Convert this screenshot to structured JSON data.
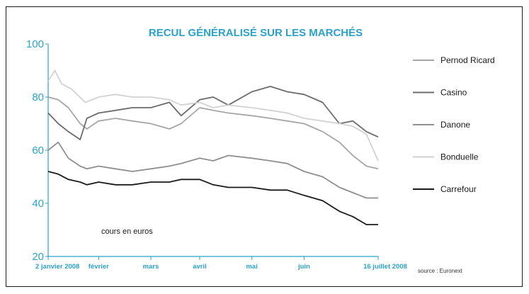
{
  "chart_data": {
    "type": "line",
    "title": "RECUL GÉNÉRALISÉ SUR LES MARCHÉS",
    "unit_note": "cours en euros",
    "source": "source : Euronext",
    "ylim": [
      20,
      100
    ],
    "y_ticks": [
      20,
      40,
      60,
      80,
      100
    ],
    "x_range": [
      "2008-01-02",
      "2008-07-16"
    ],
    "x_ticks": [
      {
        "date": "2008-01-02",
        "label": "2 janvier 2008"
      },
      {
        "date": "2008-02-01",
        "label": "février"
      },
      {
        "date": "2008-03-03",
        "label": "mars"
      },
      {
        "date": "2008-04-01",
        "label": "avril"
      },
      {
        "date": "2008-05-02",
        "label": "mai"
      },
      {
        "date": "2008-06-02",
        "label": "juin"
      },
      {
        "date": "2008-07-16",
        "label": "16 juillet 2008"
      }
    ],
    "grid": false,
    "legend_position": "right",
    "series": [
      {
        "name": "Pernod Ricard",
        "color": "#a6a6a6",
        "points": [
          [
            "2008-01-02",
            80
          ],
          [
            "2008-01-08",
            79
          ],
          [
            "2008-01-14",
            76
          ],
          [
            "2008-01-21",
            70
          ],
          [
            "2008-01-25",
            68
          ],
          [
            "2008-02-01",
            71
          ],
          [
            "2008-02-11",
            72
          ],
          [
            "2008-02-21",
            71
          ],
          [
            "2008-03-03",
            70
          ],
          [
            "2008-03-14",
            68
          ],
          [
            "2008-03-21",
            70
          ],
          [
            "2008-04-01",
            76
          ],
          [
            "2008-04-09",
            75
          ],
          [
            "2008-04-18",
            74
          ],
          [
            "2008-05-02",
            73
          ],
          [
            "2008-05-13",
            72
          ],
          [
            "2008-05-23",
            71
          ],
          [
            "2008-06-02",
            70
          ],
          [
            "2008-06-13",
            67
          ],
          [
            "2008-06-23",
            63
          ],
          [
            "2008-07-01",
            58
          ],
          [
            "2008-07-09",
            54
          ],
          [
            "2008-07-16",
            53
          ]
        ]
      },
      {
        "name": "Casino",
        "color": "#6b6b6b",
        "points": [
          [
            "2008-01-02",
            74
          ],
          [
            "2008-01-08",
            70
          ],
          [
            "2008-01-14",
            67
          ],
          [
            "2008-01-21",
            64
          ],
          [
            "2008-01-25",
            72
          ],
          [
            "2008-02-01",
            74
          ],
          [
            "2008-02-11",
            75
          ],
          [
            "2008-02-21",
            76
          ],
          [
            "2008-03-03",
            76
          ],
          [
            "2008-03-14",
            78
          ],
          [
            "2008-03-21",
            73
          ],
          [
            "2008-04-01",
            79
          ],
          [
            "2008-04-09",
            80
          ],
          [
            "2008-04-18",
            77
          ],
          [
            "2008-05-02",
            82
          ],
          [
            "2008-05-13",
            84
          ],
          [
            "2008-05-23",
            82
          ],
          [
            "2008-06-02",
            81
          ],
          [
            "2008-06-13",
            78
          ],
          [
            "2008-06-23",
            70
          ],
          [
            "2008-07-01",
            71
          ],
          [
            "2008-07-09",
            67
          ],
          [
            "2008-07-16",
            65
          ]
        ]
      },
      {
        "name": "Danone",
        "color": "#8f8f8f",
        "points": [
          [
            "2008-01-02",
            60
          ],
          [
            "2008-01-08",
            63
          ],
          [
            "2008-01-14",
            57
          ],
          [
            "2008-01-21",
            54
          ],
          [
            "2008-01-25",
            53
          ],
          [
            "2008-02-01",
            54
          ],
          [
            "2008-02-11",
            53
          ],
          [
            "2008-02-21",
            52
          ],
          [
            "2008-03-03",
            53
          ],
          [
            "2008-03-14",
            54
          ],
          [
            "2008-03-21",
            55
          ],
          [
            "2008-04-01",
            57
          ],
          [
            "2008-04-09",
            56
          ],
          [
            "2008-04-18",
            58
          ],
          [
            "2008-05-02",
            57
          ],
          [
            "2008-05-13",
            56
          ],
          [
            "2008-05-23",
            55
          ],
          [
            "2008-06-02",
            52
          ],
          [
            "2008-06-13",
            50
          ],
          [
            "2008-06-23",
            46
          ],
          [
            "2008-07-01",
            44
          ],
          [
            "2008-07-09",
            42
          ],
          [
            "2008-07-16",
            42
          ]
        ]
      },
      {
        "name": "Bonduelle",
        "color": "#d2d2d2",
        "points": [
          [
            "2008-01-02",
            86
          ],
          [
            "2008-01-06",
            90
          ],
          [
            "2008-01-10",
            85
          ],
          [
            "2008-01-16",
            83
          ],
          [
            "2008-01-24",
            78
          ],
          [
            "2008-02-01",
            80
          ],
          [
            "2008-02-11",
            81
          ],
          [
            "2008-02-21",
            80
          ],
          [
            "2008-03-03",
            80
          ],
          [
            "2008-03-14",
            79
          ],
          [
            "2008-03-21",
            77
          ],
          [
            "2008-04-01",
            78
          ],
          [
            "2008-04-09",
            76
          ],
          [
            "2008-04-18",
            77
          ],
          [
            "2008-05-02",
            76
          ],
          [
            "2008-05-13",
            75
          ],
          [
            "2008-05-23",
            74
          ],
          [
            "2008-06-02",
            72
          ],
          [
            "2008-06-13",
            71
          ],
          [
            "2008-06-23",
            70
          ],
          [
            "2008-07-01",
            69
          ],
          [
            "2008-07-09",
            66
          ],
          [
            "2008-07-16",
            56
          ]
        ]
      },
      {
        "name": "Carrefour",
        "color": "#1a1a1a",
        "points": [
          [
            "2008-01-02",
            52
          ],
          [
            "2008-01-08",
            51
          ],
          [
            "2008-01-14",
            49
          ],
          [
            "2008-01-21",
            48
          ],
          [
            "2008-01-25",
            47
          ],
          [
            "2008-02-01",
            48
          ],
          [
            "2008-02-11",
            47
          ],
          [
            "2008-02-21",
            47
          ],
          [
            "2008-03-03",
            48
          ],
          [
            "2008-03-14",
            48
          ],
          [
            "2008-03-21",
            49
          ],
          [
            "2008-04-01",
            49
          ],
          [
            "2008-04-09",
            47
          ],
          [
            "2008-04-18",
            46
          ],
          [
            "2008-05-02",
            46
          ],
          [
            "2008-05-13",
            45
          ],
          [
            "2008-05-23",
            45
          ],
          [
            "2008-06-02",
            43
          ],
          [
            "2008-06-13",
            41
          ],
          [
            "2008-06-23",
            37
          ],
          [
            "2008-07-01",
            35
          ],
          [
            "2008-07-09",
            32
          ],
          [
            "2008-07-16",
            32
          ]
        ]
      }
    ]
  }
}
